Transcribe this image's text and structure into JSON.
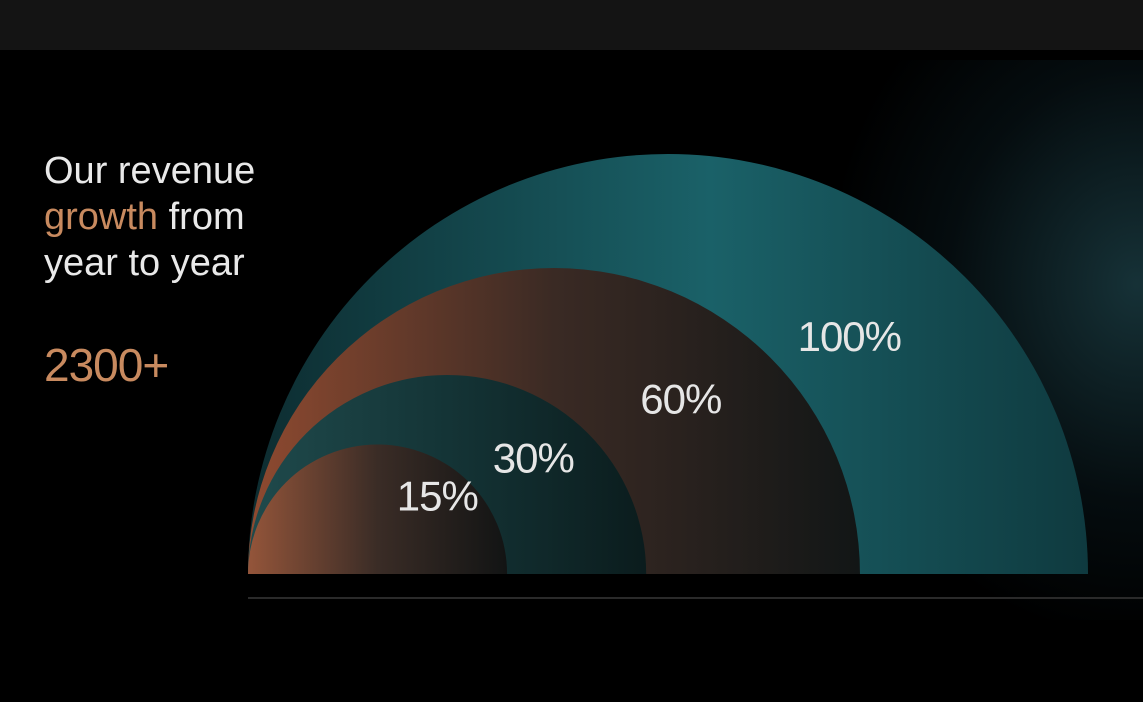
{
  "slide": {
    "kicker": "",
    "headline_pre": "Our revenue",
    "headline_accent": "growth",
    "headline_post": "from year to year",
    "stat_value": "2300+",
    "stat_label": "",
    "footnote": ""
  },
  "colors": {
    "background": "#000000",
    "accent": "#c88a5f",
    "teal": "#1e6a72",
    "copper": "#9a5538",
    "dark_teal": "#163c40",
    "arc_inner": "#2a2420"
  },
  "chart_data": {
    "type": "nested-semicircle",
    "title": "",
    "xlabel": "",
    "ylabel": "",
    "categories": [
      "",
      "",
      "",
      ""
    ],
    "values": [
      15,
      30,
      60,
      100
    ],
    "value_labels": [
      "15%",
      "30%",
      "60%",
      "100%"
    ],
    "sub_labels": [
      "",
      "",
      "",
      ""
    ],
    "grid": false
  }
}
